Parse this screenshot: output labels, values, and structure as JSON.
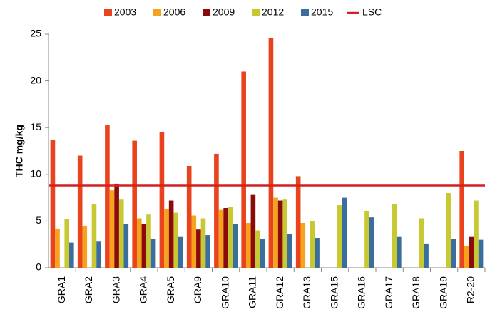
{
  "chart_data": {
    "type": "bar",
    "y_label": "THC mg/kg",
    "categories": [
      "GRA1",
      "GRA2",
      "GRA3",
      "GRA4",
      "GRA5",
      "GRA9",
      "GRA10",
      "GRA11",
      "GRA12",
      "GRA13",
      "GRA15",
      "GRA16",
      "GRA17",
      "GRA18",
      "GRA19",
      "R2-20"
    ],
    "series": [
      {
        "name": "2003",
        "color": "#e8431c",
        "values": [
          13.7,
          12.0,
          15.3,
          13.6,
          14.5,
          10.9,
          12.2,
          21.0,
          24.6,
          9.8,
          null,
          null,
          null,
          null,
          null,
          12.5
        ]
      },
      {
        "name": "2006",
        "color": "#f7a21c",
        "values": [
          4.2,
          4.5,
          8.3,
          5.3,
          6.3,
          5.6,
          6.2,
          4.8,
          7.5,
          4.8,
          null,
          null,
          null,
          null,
          null,
          2.3
        ]
      },
      {
        "name": "2009",
        "color": "#8b0a0a",
        "values": [
          null,
          null,
          9.0,
          4.7,
          7.2,
          4.1,
          6.4,
          7.8,
          7.2,
          null,
          null,
          null,
          null,
          null,
          null,
          3.3
        ]
      },
      {
        "name": "2012",
        "color": "#c8c832",
        "values": [
          5.2,
          6.8,
          7.3,
          5.7,
          5.9,
          5.3,
          6.5,
          4.0,
          7.3,
          5.0,
          6.7,
          6.1,
          6.8,
          5.3,
          8.0,
          7.2
        ]
      },
      {
        "name": "2015",
        "color": "#3a6e9e",
        "values": [
          2.7,
          2.8,
          4.7,
          3.1,
          3.3,
          3.5,
          4.7,
          3.1,
          3.6,
          3.2,
          7.5,
          5.4,
          3.3,
          2.6,
          3.1,
          3.0
        ]
      }
    ],
    "reference_line": {
      "name": "LSC",
      "value": 8.8,
      "color": "#d42020"
    },
    "ylim": [
      0,
      25
    ],
    "yticks": [
      0,
      5,
      10,
      15,
      20,
      25
    ],
    "grid": false
  }
}
